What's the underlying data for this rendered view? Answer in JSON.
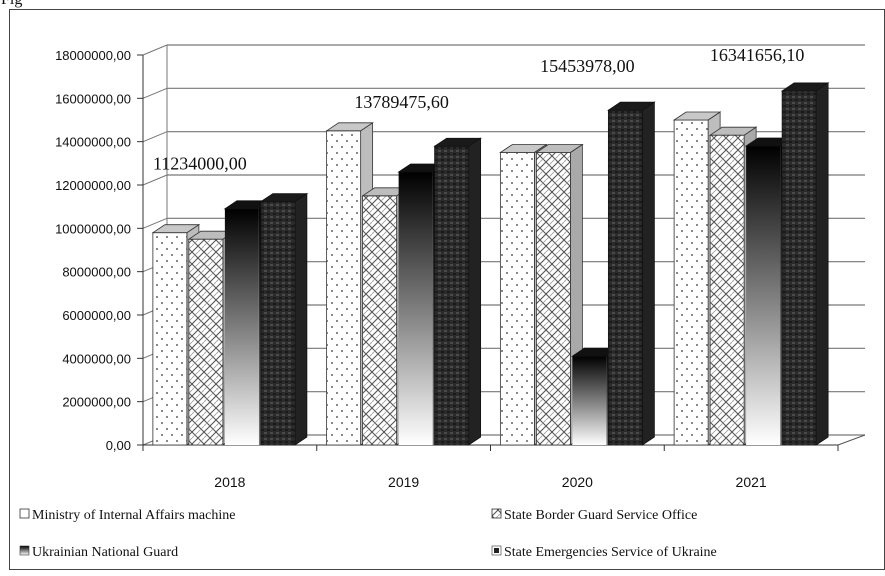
{
  "caption_fragment": "Fig",
  "chart_data": {
    "type": "bar",
    "categories": [
      "2018",
      "2019",
      "2020",
      "2021"
    ],
    "ylim": [
      0,
      18000000
    ],
    "y_ticks": [
      "0,00",
      "2000000,00",
      "4000000,00",
      "6000000,00",
      "8000000,00",
      "10000000,00",
      "12000000,00",
      "14000000,00",
      "16000000,00",
      "18000000,00"
    ],
    "series": [
      {
        "name": "Ministry of Internal Affairs machine",
        "values": [
          9800000,
          14500000,
          13500000,
          15000000
        ],
        "color": "#ffffff"
      },
      {
        "name": "State Border Guard Service Office",
        "values": [
          9500000,
          11500000,
          13500000,
          14300000
        ],
        "color": "#e8e8e8"
      },
      {
        "name": "Ukrainian National Guard",
        "values": [
          10900000,
          12600000,
          4100000,
          13800000
        ],
        "color": "#2a2a2a"
      },
      {
        "name": "State Emergencies Service of Ukraine",
        "values": [
          11234000.0,
          13789475.6,
          15453978.0,
          16341656.1
        ],
        "color": "#3a3a3a"
      }
    ],
    "data_labels": [
      "11234000,00",
      "13789475,60",
      "15453978,00",
      "16341656,10"
    ],
    "grid": true,
    "legend_position": "bottom",
    "style": "3d-column"
  }
}
